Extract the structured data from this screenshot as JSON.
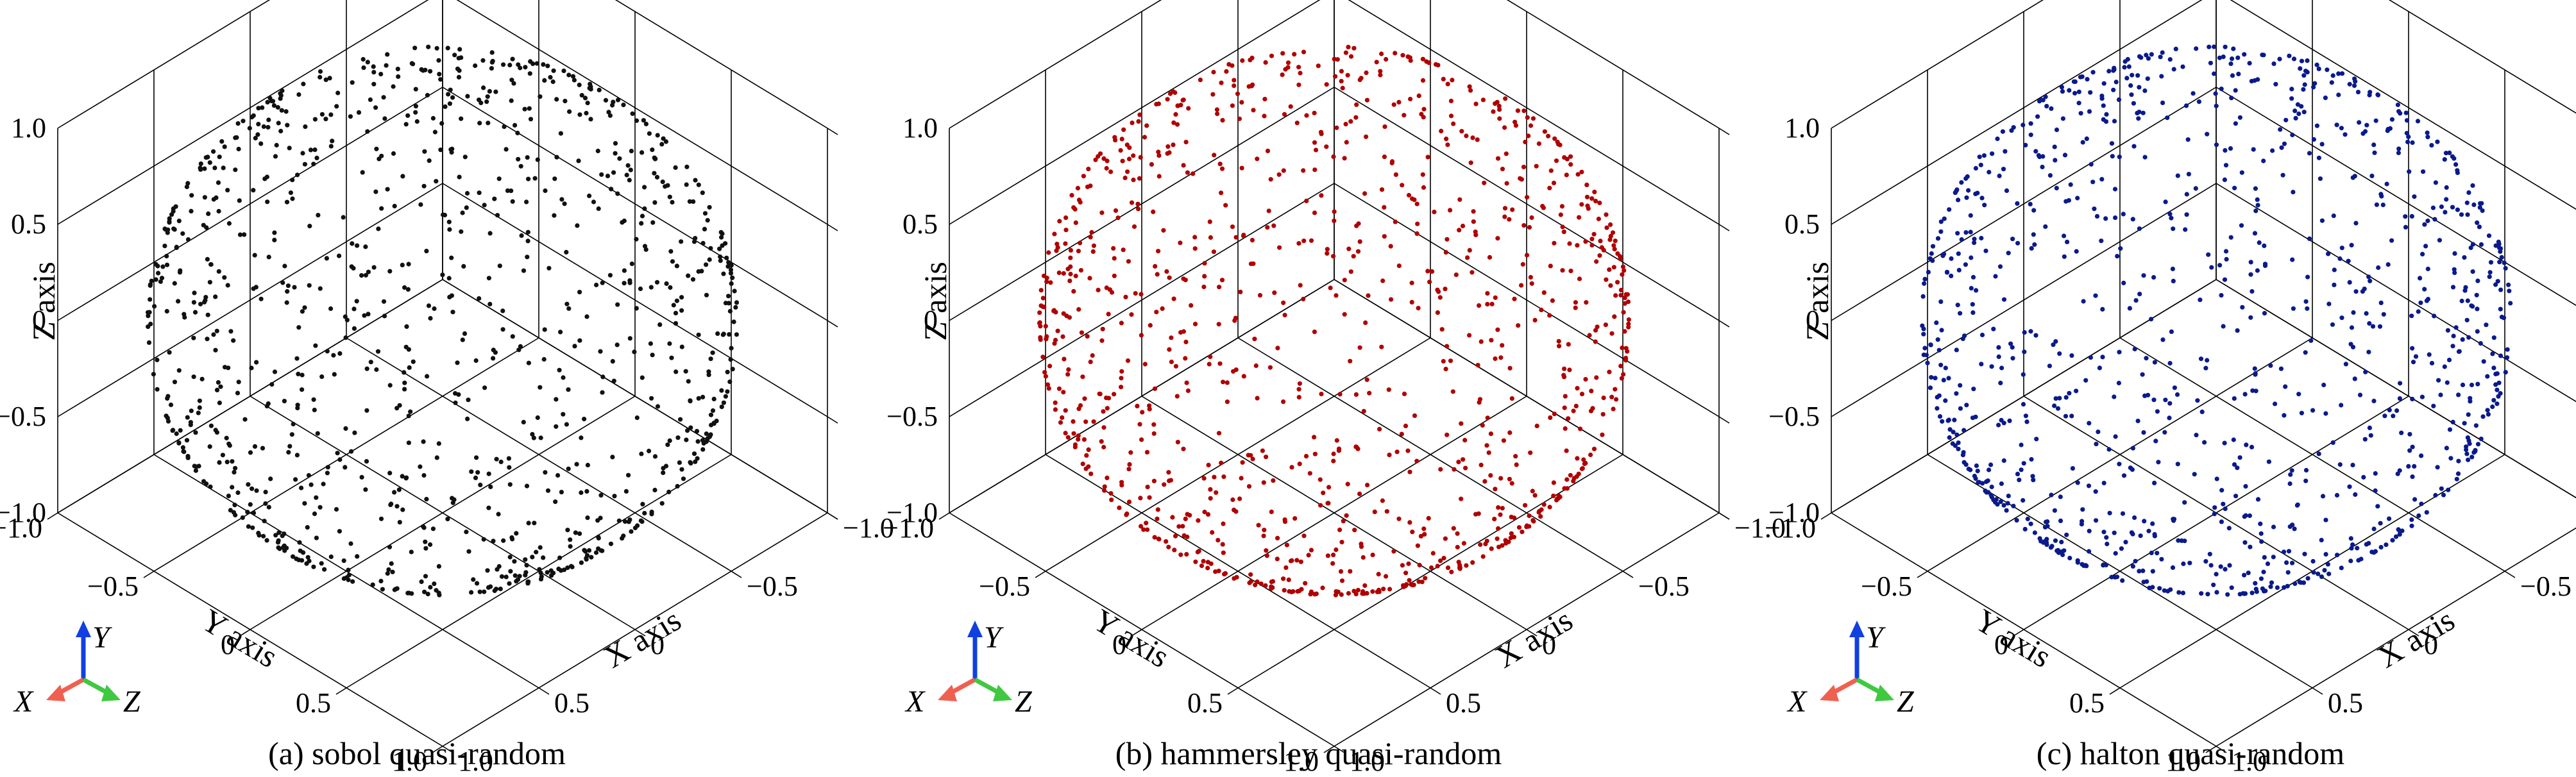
{
  "figure": {
    "panels": [
      {
        "caption": "(a) sobol quasi-random",
        "method": "sobol",
        "point_color": "#111111"
      },
      {
        "caption": "(b) hammersley quasi-random",
        "method": "hammersley",
        "point_color": "#b00000"
      },
      {
        "caption": "(c) halton quasi-random",
        "method": "halton",
        "point_color": "#0a1a8c"
      }
    ],
    "axis_labels": {
      "x": "X axis",
      "y": "Y axis",
      "z": "Z axis"
    },
    "ticks": [
      "−1.0",
      "−0.5",
      "0",
      "0.5",
      "1.0"
    ],
    "triad": {
      "x": "X",
      "y": "Y",
      "z": "Z",
      "x_color": "#f06050",
      "y_color": "#1040e0",
      "z_color": "#40c840"
    }
  },
  "chart_data": [
    {
      "type": "scatter",
      "title": "(a) sobol quasi-random",
      "distribution": "points on the surface of a unit sphere",
      "approx_point_count": 2000,
      "xlabel": "X axis",
      "ylabel": "Y axis",
      "zlabel": "Z axis",
      "xlim": [
        -1.0,
        1.0
      ],
      "ylim": [
        -1.0,
        1.0
      ],
      "zlim": [
        -1.0,
        1.0
      ],
      "ticks": [
        -1.0,
        -0.5,
        0,
        0.5,
        1.0
      ],
      "grid": true,
      "color": "#111111"
    },
    {
      "type": "scatter",
      "title": "(b) hammersley quasi-random",
      "distribution": "points on the surface of a unit sphere",
      "approx_point_count": 2000,
      "xlabel": "X axis",
      "ylabel": "Y axis",
      "zlabel": "Z axis",
      "xlim": [
        -1.0,
        1.0
      ],
      "ylim": [
        -1.0,
        1.0
      ],
      "zlim": [
        -1.0,
        1.0
      ],
      "ticks": [
        -1.0,
        -0.5,
        0,
        0.5,
        1.0
      ],
      "grid": true,
      "color": "#b00000"
    },
    {
      "type": "scatter",
      "title": "(c) halton quasi-random",
      "distribution": "points on the surface of a unit sphere",
      "approx_point_count": 2000,
      "xlabel": "X axis",
      "ylabel": "Y axis",
      "zlabel": "Z axis",
      "xlim": [
        -1.0,
        1.0
      ],
      "ylim": [
        -1.0,
        1.0
      ],
      "zlim": [
        -1.0,
        1.0
      ],
      "ticks": [
        -1.0,
        -0.5,
        0,
        0.5,
        1.0
      ],
      "grid": true,
      "color": "#0a1a8c"
    }
  ]
}
